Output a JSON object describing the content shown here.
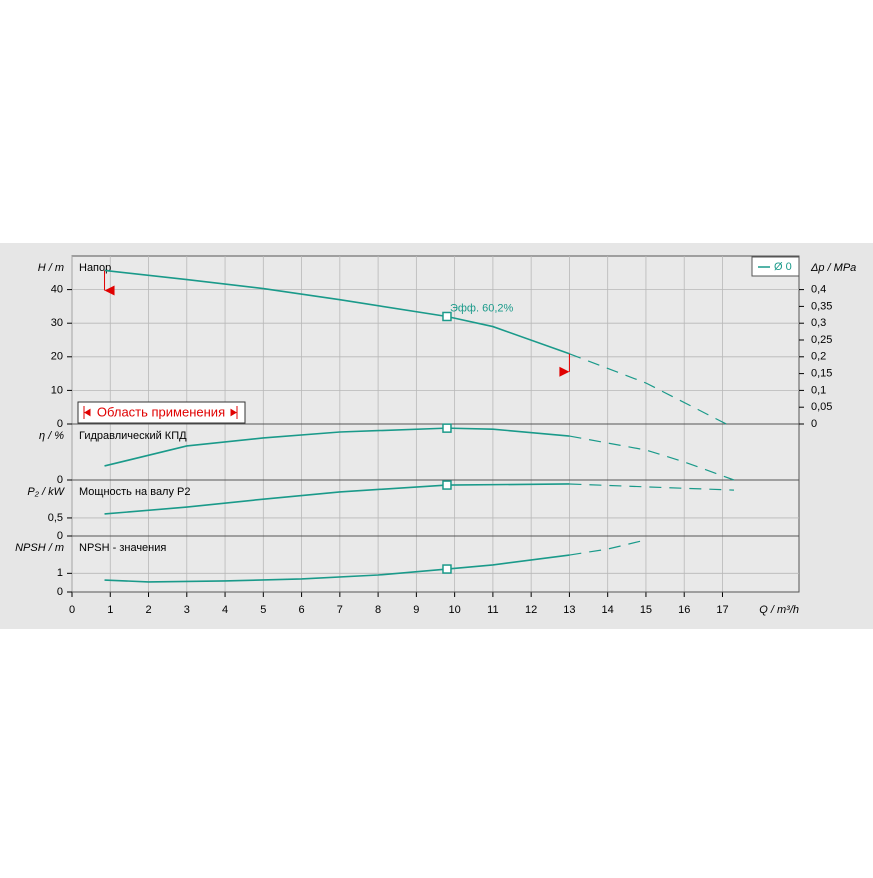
{
  "chart_data": {
    "type": "line",
    "color": "#1a9a8a",
    "range_color": "#e00000",
    "grid": true,
    "legend": {
      "name": "Ø 0",
      "corner": "top-right"
    },
    "x_axis": {
      "label": "Q / m³/h",
      "xlim": [
        0,
        19
      ],
      "xticks": [
        0,
        1,
        2,
        3,
        4,
        5,
        6,
        7,
        8,
        9,
        10,
        11,
        12,
        13,
        14,
        15,
        16,
        17
      ]
    },
    "application_range": {
      "label": "Область применения",
      "x": [
        0.85,
        13
      ]
    },
    "panels": [
      {
        "title": "Напор",
        "ylabel": "H / m",
        "ylim": [
          0,
          50
        ],
        "yticks": [
          0,
          10,
          20,
          30,
          40
        ],
        "y2label": "Δp / MPa",
        "y2lim": [
          0,
          0.5
        ],
        "y2ticks": [
          0,
          {
            "value": 0.05,
            "label": "0,05"
          },
          {
            "value": 0.1,
            "label": "0,1"
          },
          {
            "value": 0.15,
            "label": "0,15"
          },
          {
            "value": 0.2,
            "label": "0,2"
          },
          {
            "value": 0.25,
            "label": "0,25"
          },
          {
            "value": 0.3,
            "label": "0,3"
          },
          {
            "value": 0.35,
            "label": "0,35"
          },
          {
            "value": 0.4,
            "label": "0,4"
          }
        ],
        "x": [
          0.85,
          3,
          5,
          7,
          9.8,
          11,
          13
        ],
        "values": [
          45.7,
          43,
          40.3,
          37,
          32,
          29,
          20.9
        ],
        "x_ext": [
          13,
          15,
          17.1
        ],
        "values_ext": [
          20.9,
          12.2,
          0
        ],
        "marker": {
          "x": 9.8,
          "y": 32
        },
        "annotation": "Эфф.  60,2%"
      },
      {
        "title": "Гидравлический КПД",
        "ylabel": "η / %",
        "ylim": [
          0,
          65
        ],
        "yticks": [
          0
        ],
        "x": [
          0.85,
          3,
          5,
          7,
          9.8,
          11,
          13
        ],
        "values": [
          16.3,
          39.5,
          48.8,
          55.7,
          60.2,
          59,
          51
        ],
        "x_ext": [
          13,
          15,
          16,
          17.3
        ],
        "values_ext": [
          51,
          34.8,
          21,
          0
        ],
        "marker": {
          "x": 9.8,
          "y": 60.2
        }
      },
      {
        "title": "Мощность на валу P2",
        "ylabel": "P₂ / kW",
        "ylim": [
          0,
          1.55
        ],
        "yticks": [
          0,
          {
            "value": 0.5,
            "label": "0,5"
          }
        ],
        "x": [
          0.85,
          3,
          5,
          7,
          9.8,
          13
        ],
        "values": [
          0.61,
          0.8,
          1.02,
          1.22,
          1.41,
          1.44
        ],
        "x_ext": [
          13,
          15,
          17.3
        ],
        "values_ext": [
          1.44,
          1.36,
          1.27
        ],
        "marker": {
          "x": 9.8,
          "y": 1.41
        }
      },
      {
        "title": "NPSH - значения",
        "ylabel": "NPSH / m",
        "ylim": [
          0,
          3
        ],
        "yticks": [
          0,
          1
        ],
        "x": [
          0.85,
          2,
          4,
          6,
          8,
          9.8,
          11,
          13
        ],
        "values": [
          0.64,
          0.54,
          0.59,
          0.7,
          0.91,
          1.23,
          1.45,
          1.98
        ],
        "x_ext": [
          13,
          14,
          15
        ],
        "values_ext": [
          1.98,
          2.3,
          2.79
        ],
        "marker": {
          "x": 9.8,
          "y": 1.23
        }
      }
    ]
  }
}
